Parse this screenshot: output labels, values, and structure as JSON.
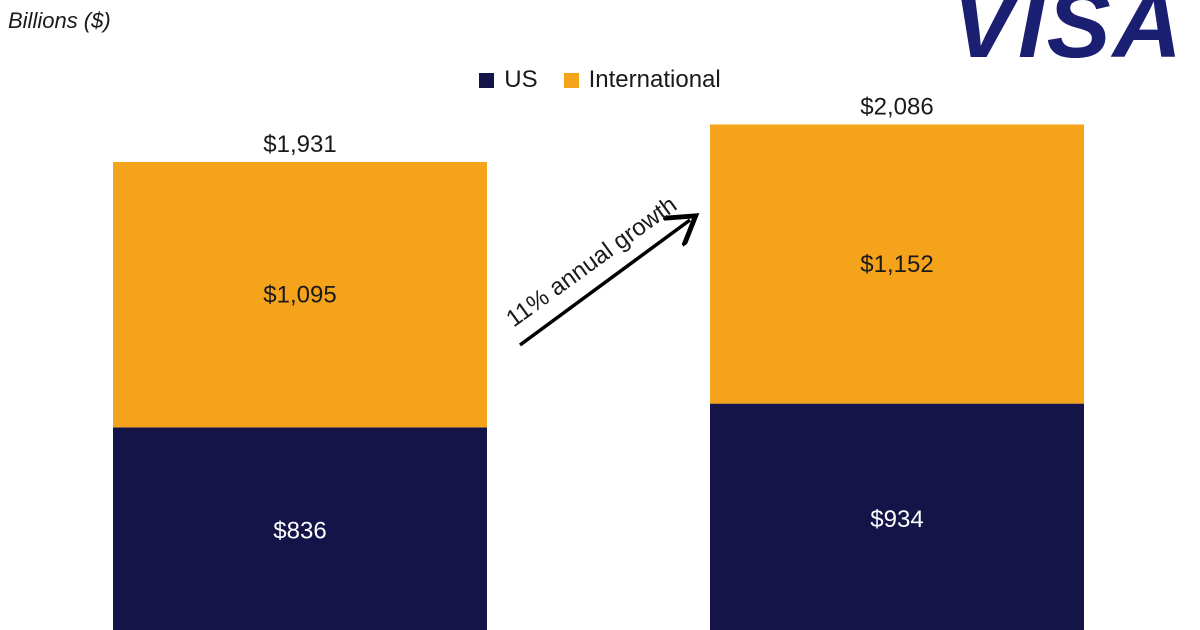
{
  "unit_label": "Billions ($)",
  "logo": {
    "text": "VISA",
    "color": "#1a1f71"
  },
  "colors": {
    "US": "#151449",
    "International": "#f5a31a"
  },
  "chart_data": {
    "type": "bar",
    "stacked": true,
    "categories": [
      "",
      ""
    ],
    "series": [
      {
        "name": "US",
        "values": [
          836,
          934
        ],
        "labels": [
          "$836",
          "$934"
        ]
      },
      {
        "name": "International",
        "values": [
          1095,
          1152
        ],
        "labels": [
          "$1,095",
          "$1,152"
        ]
      }
    ],
    "totals": [
      1931,
      2086
    ],
    "total_labels": [
      "$1,931",
      "$2,086"
    ],
    "legend_position": "top",
    "grid": false,
    "annotation": "11% annual growth"
  }
}
